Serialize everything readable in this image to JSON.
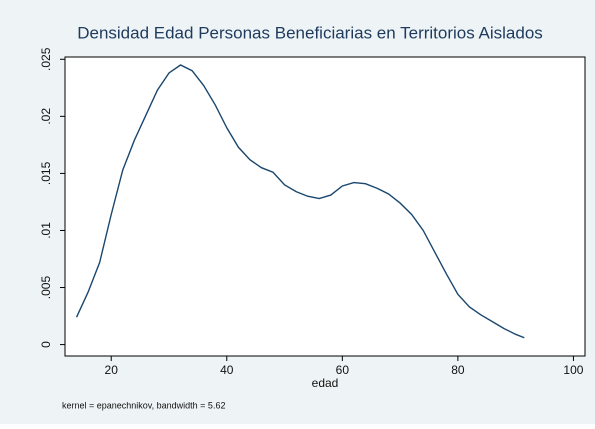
{
  "chart_data": {
    "type": "line",
    "title": "Densidad Edad Personas Beneficiarias en Territorios  Aislados",
    "xlabel": "edad",
    "note": "kernel = epanechnikov, bandwidth = 5.62",
    "x": [
      14,
      16,
      18,
      20,
      22,
      24,
      26,
      28,
      30,
      32,
      34,
      36,
      38,
      40,
      42,
      44,
      46,
      48,
      50,
      52,
      54,
      56,
      58,
      60,
      62,
      64,
      66,
      68,
      70,
      72,
      74,
      76,
      78,
      80,
      82,
      84,
      86,
      88,
      90,
      91.5
    ],
    "series": [
      {
        "color": "#1a476f",
        "values": [
          0.0024,
          0.0046,
          0.0072,
          0.0114,
          0.0153,
          0.0179,
          0.0201,
          0.0223,
          0.0238,
          0.0245,
          0.024,
          0.0227,
          0.021,
          0.019,
          0.0173,
          0.0162,
          0.0155,
          0.0151,
          0.014,
          0.0134,
          0.013,
          0.0128,
          0.0131,
          0.0139,
          0.0142,
          0.0141,
          0.0137,
          0.0132,
          0.0124,
          0.0114,
          0.01,
          0.0081,
          0.0062,
          0.0044,
          0.0033,
          0.0026,
          0.002,
          0.0014,
          0.0009,
          0.0006
        ]
      }
    ],
    "xlim": [
      12,
      102
    ],
    "xticks": [
      20,
      40,
      60,
      80,
      100
    ],
    "ylim": [
      -0.001,
      0.0252
    ],
    "yticks": [
      0,
      {
        "value": 0.005,
        "label": ".005"
      },
      {
        "value": 0.01,
        "label": ".01"
      },
      {
        "value": 0.015,
        "label": ".015"
      },
      {
        "value": 0.02,
        "label": ".02"
      },
      {
        "value": 0.025,
        "label": ".025"
      }
    ]
  }
}
